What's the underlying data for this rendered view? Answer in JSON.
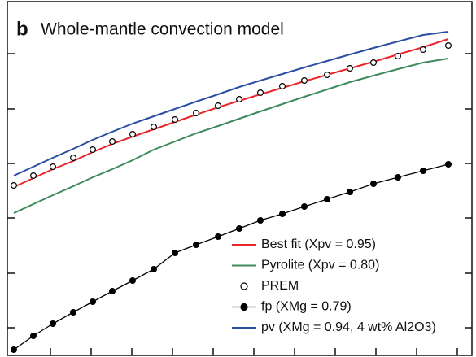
{
  "chart_data": {
    "type": "line",
    "panel_label": "b",
    "title": "Whole-mantle convection model",
    "x": [
      8,
      32,
      56,
      81,
      105,
      129,
      154,
      180,
      206,
      232,
      259,
      285,
      311,
      338,
      365,
      393,
      421,
      450,
      480,
      511,
      542
    ],
    "xlim": [
      0,
      571
    ],
    "xticks": [
      53,
      103,
      153,
      203,
      253,
      303,
      353,
      403,
      453,
      503,
      553
    ],
    "ylim": [
      0,
      435
    ],
    "yticks": [
      34,
      101,
      169,
      236,
      303,
      371
    ],
    "legend": "lower right",
    "series": [
      {
        "name": "Best fit (Xpv = 0.95)",
        "color": "#e8262b",
        "style": "line",
        "values": [
          207,
          218,
          229,
          239,
          250,
          260,
          269,
          278,
          287,
          296,
          305,
          313,
          321,
          329,
          337,
          345,
          353,
          361,
          370,
          379,
          389
        ]
      },
      {
        "name": "Pyrolite (Xpv = 0.80)",
        "color": "#3f8a5c",
        "style": "line",
        "values": [
          175,
          186,
          197,
          208,
          219,
          229,
          240,
          253,
          263,
          273,
          282,
          291,
          300,
          309,
          318,
          327,
          336,
          344,
          352,
          360,
          365
        ]
      },
      {
        "name": "PREM",
        "color": "#000000",
        "style": "open-markers",
        "values": [
          209,
          221,
          232,
          243,
          253,
          263,
          272,
          281,
          290,
          298,
          307,
          315,
          323,
          331,
          338,
          345,
          353,
          360,
          368,
          376,
          381
        ]
      },
      {
        "name": "fp (XMg = 0.79)",
        "color": "#000000",
        "style": "line-markers",
        "values": [
          7,
          24,
          39,
          53,
          66,
          79,
          92,
          106,
          126,
          136,
          146,
          156,
          166,
          174,
          183,
          192,
          201,
          211,
          219,
          227,
          235
        ]
      },
      {
        "name": "pv (XMg = 0.94, 4 wt% Al2O3)",
        "color": "#2b4ea3",
        "style": "line",
        "values": [
          221,
          232,
          243,
          254,
          265,
          275,
          285,
          294,
          303,
          312,
          321,
          330,
          338,
          346,
          354,
          362,
          370,
          378,
          386,
          394,
          398
        ]
      }
    ]
  }
}
